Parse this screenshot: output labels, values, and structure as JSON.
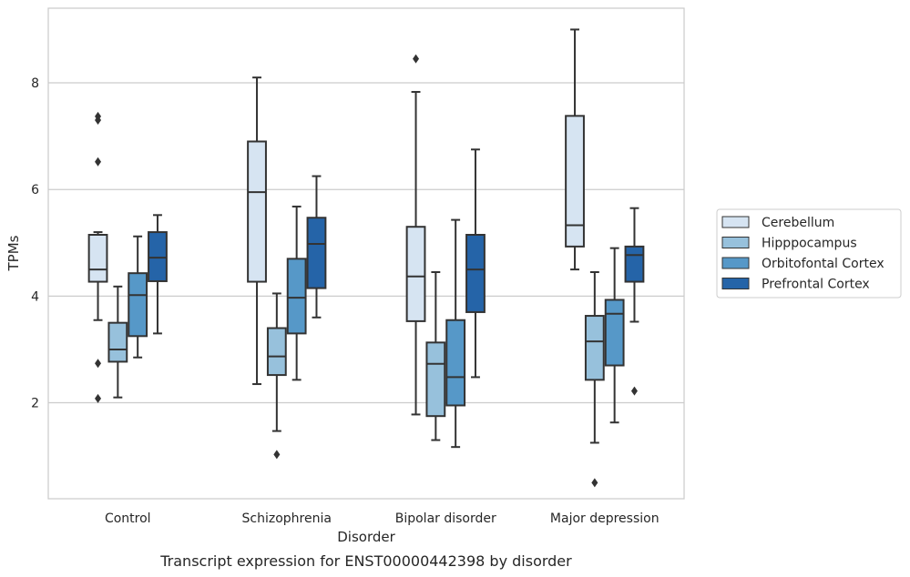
{
  "chart_data": {
    "type": "box",
    "caption": "Transcript expression for ENST00000442398 by disorder",
    "xlabel": "Disorder",
    "ylabel": "TPMs",
    "ylim": [
      0.2,
      9.4
    ],
    "yticks": [
      2,
      4,
      6,
      8
    ],
    "grid": "horizontal",
    "legend_position": "right",
    "categories": [
      "Control",
      "Schizophrenia",
      "Bipolar disorder",
      "Major depression"
    ],
    "series": [
      {
        "name": "Cerebellum",
        "color": "#d6e4f2",
        "boxes": [
          {
            "whislo": 3.55,
            "q1": 4.27,
            "med": 4.5,
            "q3": 5.15,
            "whishi": 5.2,
            "fliers": [
              7.37,
              7.3,
              6.52,
              2.74,
              2.08
            ]
          },
          {
            "whislo": 2.35,
            "q1": 4.27,
            "med": 5.95,
            "q3": 6.9,
            "whishi": 8.1,
            "fliers": []
          },
          {
            "whislo": 1.78,
            "q1": 3.53,
            "med": 4.37,
            "q3": 5.3,
            "whishi": 7.83,
            "fliers": [
              8.45
            ]
          },
          {
            "whislo": 4.5,
            "q1": 4.93,
            "med": 5.33,
            "q3": 7.38,
            "whishi": 9.0,
            "fliers": []
          }
        ]
      },
      {
        "name": "Hipppocampus",
        "color": "#97c1dc",
        "boxes": [
          {
            "whislo": 2.1,
            "q1": 2.77,
            "med": 3.0,
            "q3": 3.5,
            "whishi": 4.18,
            "fliers": []
          },
          {
            "whislo": 1.47,
            "q1": 2.52,
            "med": 2.87,
            "q3": 3.4,
            "whishi": 4.05,
            "fliers": [
              1.03
            ]
          },
          {
            "whislo": 1.3,
            "q1": 1.75,
            "med": 2.73,
            "q3": 3.13,
            "whishi": 4.45,
            "fliers": []
          },
          {
            "whislo": 1.25,
            "q1": 2.43,
            "med": 3.15,
            "q3": 3.63,
            "whishi": 4.45,
            "fliers": [
              0.5
            ]
          }
        ]
      },
      {
        "name": "Orbitofontal Cortex",
        "color": "#5698c8",
        "boxes": [
          {
            "whislo": 2.85,
            "q1": 3.25,
            "med": 4.02,
            "q3": 4.43,
            "whishi": 5.12,
            "fliers": []
          },
          {
            "whislo": 2.43,
            "q1": 3.3,
            "med": 3.97,
            "q3": 4.7,
            "whishi": 5.68,
            "fliers": []
          },
          {
            "whislo": 1.17,
            "q1": 1.95,
            "med": 2.48,
            "q3": 3.55,
            "whishi": 5.43,
            "fliers": []
          },
          {
            "whislo": 1.63,
            "q1": 2.7,
            "med": 3.67,
            "q3": 3.93,
            "whishi": 4.9,
            "fliers": []
          }
        ]
      },
      {
        "name": "Prefrontal Cortex",
        "color": "#2564a8",
        "boxes": [
          {
            "whislo": 3.3,
            "q1": 4.28,
            "med": 4.72,
            "q3": 5.2,
            "whishi": 5.52,
            "fliers": []
          },
          {
            "whislo": 3.6,
            "q1": 4.15,
            "med": 4.98,
            "q3": 5.47,
            "whishi": 6.25,
            "fliers": []
          },
          {
            "whislo": 2.48,
            "q1": 3.7,
            "med": 4.5,
            "q3": 5.15,
            "whishi": 6.75,
            "fliers": []
          },
          {
            "whislo": 3.52,
            "q1": 4.27,
            "med": 4.77,
            "q3": 4.93,
            "whishi": 5.65,
            "fliers": [
              2.22
            ]
          }
        ]
      }
    ]
  }
}
